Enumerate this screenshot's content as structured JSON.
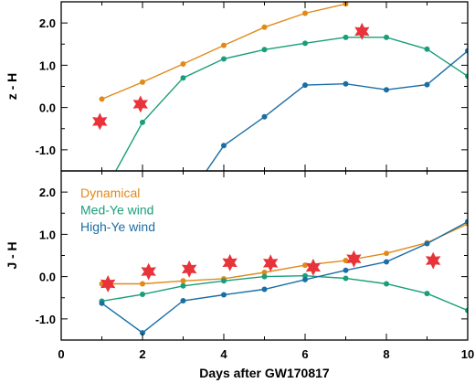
{
  "chart_data": [
    {
      "type": "line",
      "panel": "top",
      "ylabel": "z - H",
      "ylim": [
        -1.5,
        2.5
      ],
      "xlim": [
        0,
        10
      ],
      "yticks": [
        -1.0,
        0.0,
        1.0,
        2.0
      ],
      "ytick_labels": [
        "-1.0",
        "0.0",
        "1.0",
        "2.0"
      ],
      "series": [
        {
          "color": "#E08A1A",
          "x": [
            1,
            2,
            3,
            4,
            5,
            6,
            7
          ],
          "y": [
            0.2,
            0.6,
            1.03,
            1.47,
            1.9,
            2.23,
            2.45
          ]
        },
        {
          "color": "#1A9E7A",
          "x": [
            1,
            2,
            3,
            4,
            5,
            6,
            7,
            8,
            9,
            10
          ],
          "y": [
            -2.1,
            -0.35,
            0.7,
            1.15,
            1.37,
            1.52,
            1.66,
            1.66,
            1.38,
            0.74
          ]
        },
        {
          "color": "#1A6EA5",
          "x": [
            3,
            4,
            5,
            6,
            7,
            8,
            9,
            10
          ],
          "y": [
            -2.3,
            -0.9,
            -0.22,
            0.53,
            0.56,
            0.42,
            0.54,
            1.34
          ]
        }
      ],
      "observations": {
        "color": "#E8333A",
        "x": [
          0.95,
          1.95,
          7.4
        ],
        "y": [
          -0.33,
          0.08,
          1.8
        ]
      }
    },
    {
      "type": "line",
      "panel": "bottom",
      "ylabel": "J - H",
      "xlabel": "Days after GW170817",
      "ylim": [
        -1.5,
        2.5
      ],
      "xlim": [
        0,
        10
      ],
      "yticks": [
        -1.0,
        0.0,
        1.0,
        2.0
      ],
      "ytick_labels": [
        "-1.0",
        "0.0",
        "1.0",
        "2.0"
      ],
      "xticks": [
        0,
        2,
        4,
        6,
        8,
        10
      ],
      "xtick_labels": [
        "0",
        "2",
        "4",
        "6",
        "8",
        "10"
      ],
      "legend": {
        "placement": "top-left",
        "entries": [
          {
            "label": "Dynamical",
            "color": "#E08A1A"
          },
          {
            "label": "Med-Ye wind",
            "color": "#1A9E7A"
          },
          {
            "label": "High-Ye wind",
            "color": "#1A6EA5"
          }
        ]
      },
      "series": [
        {
          "name": "Dynamical",
          "color": "#E08A1A",
          "x": [
            1,
            2,
            3,
            4,
            5,
            6,
            7,
            8,
            9,
            10
          ],
          "y": [
            -0.17,
            -0.17,
            -0.1,
            -0.05,
            0.1,
            0.27,
            0.38,
            0.55,
            0.8,
            1.25
          ]
        },
        {
          "name": "Med-Ye wind",
          "color": "#1A9E7A",
          "x": [
            1,
            2,
            3,
            4,
            5,
            6,
            7,
            8,
            9,
            10
          ],
          "y": [
            -0.58,
            -0.42,
            -0.22,
            -0.1,
            0.0,
            0.02,
            -0.04,
            -0.17,
            -0.4,
            -0.8
          ]
        },
        {
          "name": "High-Ye wind",
          "color": "#1A6EA5",
          "x": [
            1,
            2,
            3,
            4,
            5,
            6,
            7,
            8,
            9,
            10
          ],
          "y": [
            -0.63,
            -1.33,
            -0.57,
            -0.43,
            -0.3,
            -0.07,
            0.15,
            0.35,
            0.78,
            1.3
          ]
        }
      ],
      "observations": {
        "color": "#E8333A",
        "x": [
          1.15,
          2.15,
          3.15,
          4.15,
          5.15,
          6.2,
          7.2,
          9.15
        ],
        "y": [
          -0.17,
          0.12,
          0.18,
          0.33,
          0.32,
          0.22,
          0.42,
          0.38
        ]
      }
    }
  ]
}
